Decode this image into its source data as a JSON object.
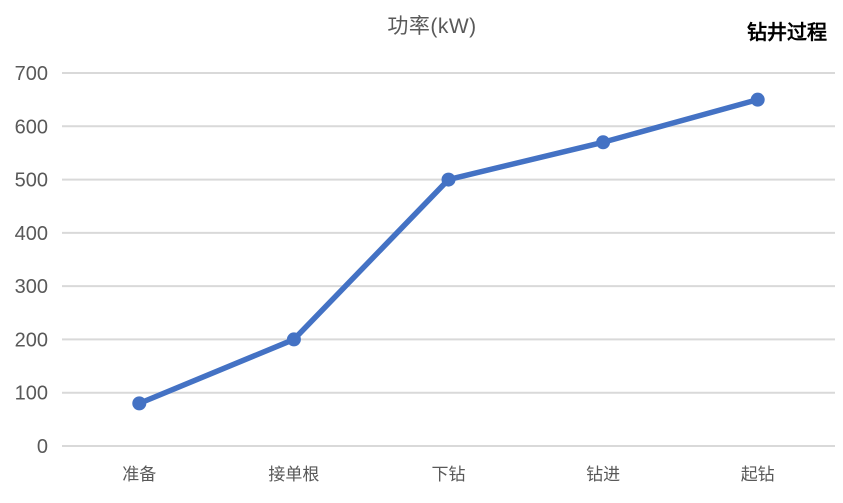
{
  "chart": {
    "title": "功率(kW)",
    "series_label": "钻井过程"
  },
  "colors": {
    "line": "#4472C4",
    "marker": "#4472C4",
    "gridline": "#D9D9D9",
    "tick_labels": "#595959",
    "title": "#595959",
    "series_label": "#000000",
    "background": "#FFFFFF"
  },
  "chart_data": {
    "type": "line",
    "title": "功率(kW)",
    "series_name": "钻井过程",
    "categories": [
      "准备",
      "接单根",
      "下钻",
      "钻进",
      "起钻"
    ],
    "values": [
      80,
      200,
      500,
      570,
      650
    ],
    "xlabel": "",
    "ylabel": "",
    "ylim": [
      0,
      700
    ],
    "yticks": [
      0,
      100,
      200,
      300,
      400,
      500,
      600,
      700
    ],
    "grid": true,
    "gridlines": "horizontal",
    "legend_position": "top-right",
    "marker": "circle",
    "line_width": 5.5,
    "marker_radius": 7
  }
}
